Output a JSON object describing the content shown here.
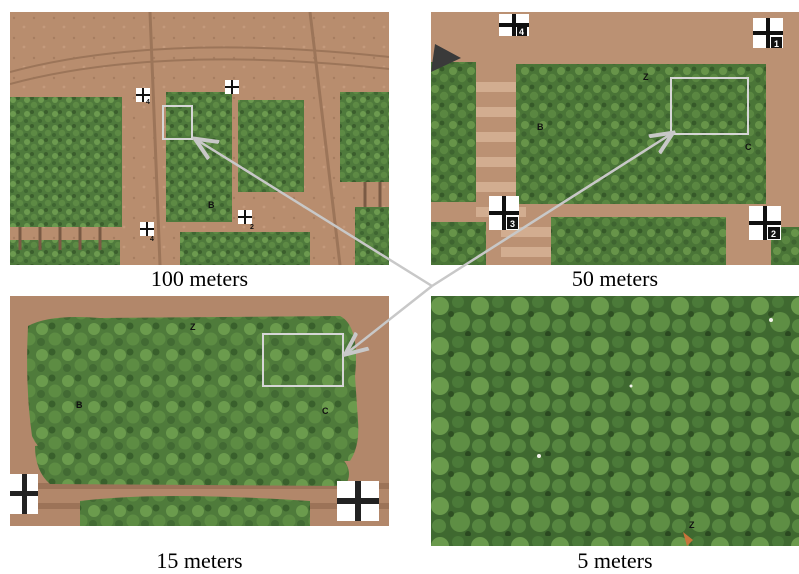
{
  "panels": [
    {
      "caption": "100 meters",
      "markers": [
        "4",
        "4",
        "2"
      ],
      "plot_letters": [
        "B"
      ]
    },
    {
      "caption": "50 meters",
      "markers": [
        "4",
        "1",
        "3",
        "2"
      ],
      "plot_letters": [
        "Z",
        "B",
        "C"
      ]
    },
    {
      "caption": "15 meters",
      "markers": [],
      "plot_letters": [
        "Z",
        "B",
        "C"
      ]
    },
    {
      "caption": "5 meters",
      "markers": [],
      "plot_letters": [
        "Z"
      ]
    }
  ],
  "colors": {
    "soil": "#b88d6e",
    "soil_dark": "#8d6a53",
    "canopy": "#4f7a3c",
    "canopy_light": "#6c9a4f",
    "canopy_dark": "#3b5e2d",
    "frame": "#cfcfcf"
  }
}
